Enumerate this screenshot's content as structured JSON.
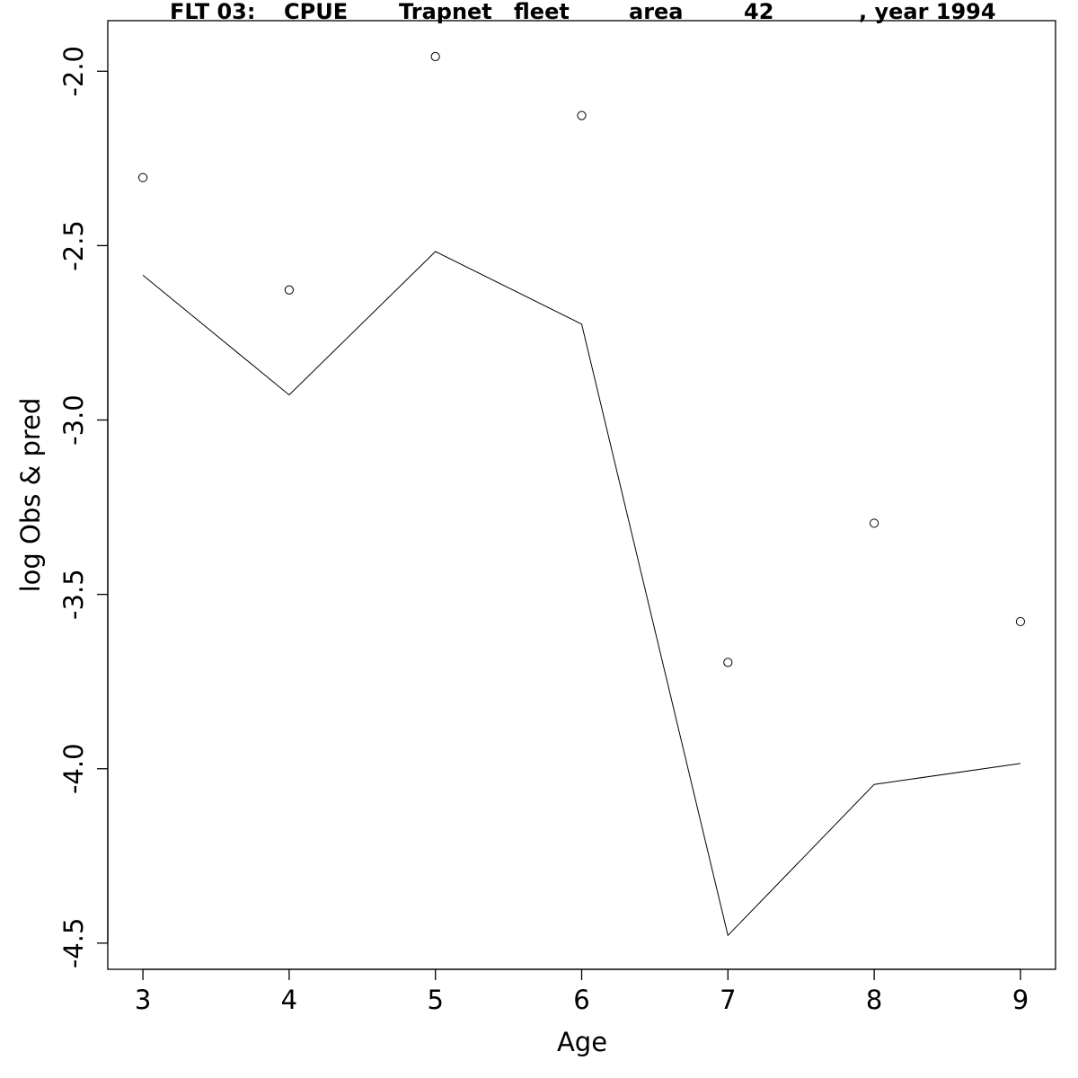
{
  "chart_data": {
    "type": "line",
    "title_parts": [
      "FLT 03:",
      "CPUE",
      "Trapnet",
      "fleet",
      "area",
      "42",
      ", year 1994"
    ],
    "xlabel": "Age",
    "ylabel": "log Obs & pred",
    "x_ticks": [
      "3",
      "4",
      "5",
      "6",
      "7",
      "8",
      "9"
    ],
    "y_ticks": [
      "-2.0",
      "-2.5",
      "-3.0",
      "-3.5",
      "-4.0",
      "-4.5"
    ],
    "xlim": [
      2.76,
      9.24
    ],
    "ylim": [
      -4.575,
      -1.855
    ],
    "grid": false,
    "legend": "none",
    "series": [
      {
        "style": "points",
        "marker": "open-circle",
        "x": [
          3,
          4,
          5,
          6,
          7,
          8,
          9
        ],
        "y": [
          -2.305,
          -2.627,
          -1.958,
          -2.127,
          -3.695,
          -3.296,
          -3.578
        ]
      },
      {
        "style": "line",
        "x": [
          3,
          4,
          5,
          6,
          7,
          8,
          9
        ],
        "y": [
          -2.585,
          -2.928,
          -2.517,
          -2.725,
          -4.478,
          -4.045,
          -3.985
        ]
      }
    ],
    "colors": {
      "line": "#000000",
      "points": "#000000",
      "frame": "#000000"
    }
  }
}
